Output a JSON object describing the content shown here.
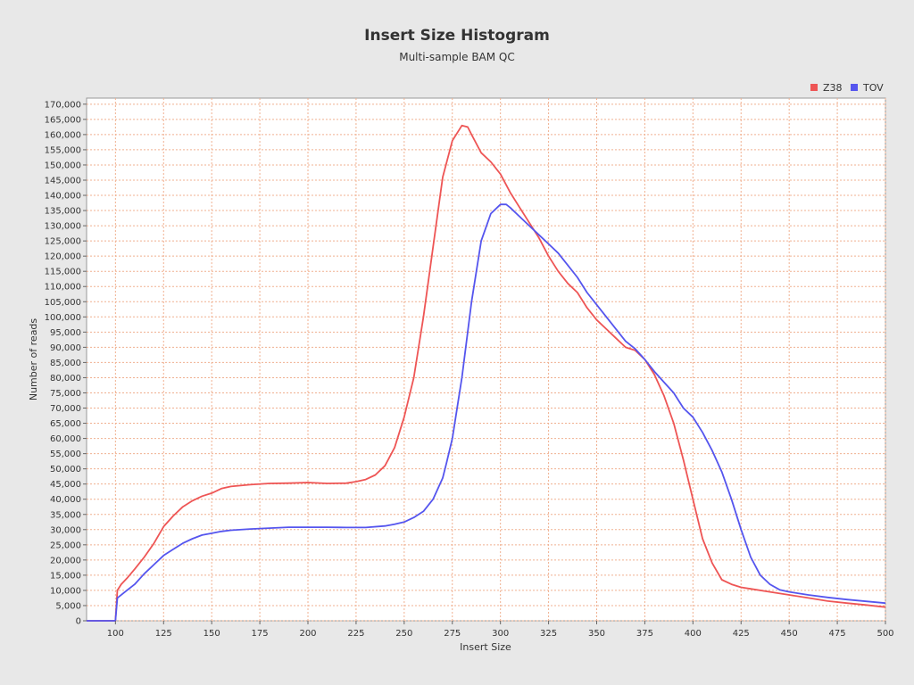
{
  "chart_data": {
    "type": "line",
    "title": "Insert Size Histogram",
    "subtitle": "Multi-sample BAM QC",
    "xlabel": "Insert Size",
    "ylabel": "Number of reads",
    "xlim": [
      85,
      500
    ],
    "ylim": [
      0,
      172000
    ],
    "xticks": [
      100,
      125,
      150,
      175,
      200,
      225,
      250,
      275,
      300,
      325,
      350,
      375,
      400,
      425,
      450,
      475,
      500
    ],
    "xtick_labels": [
      "100",
      "125",
      "150",
      "175",
      "200",
      "225",
      "250",
      "275",
      "300",
      "325",
      "350",
      "375",
      "400",
      "425",
      "450",
      "475",
      "500"
    ],
    "yticks": [
      0,
      5000,
      10000,
      15000,
      20000,
      25000,
      30000,
      35000,
      40000,
      45000,
      50000,
      55000,
      60000,
      65000,
      70000,
      75000,
      80000,
      85000,
      90000,
      95000,
      100000,
      105000,
      110000,
      115000,
      120000,
      125000,
      130000,
      135000,
      140000,
      145000,
      150000,
      155000,
      160000,
      165000,
      170000
    ],
    "ytick_labels": [
      "0",
      "5,000",
      "10,000",
      "15,000",
      "20,000",
      "25,000",
      "30,000",
      "35,000",
      "40,000",
      "45,000",
      "50,000",
      "55,000",
      "60,000",
      "65,000",
      "70,000",
      "75,000",
      "80,000",
      "85,000",
      "90,000",
      "95,000",
      "100,000",
      "105,000",
      "110,000",
      "115,000",
      "120,000",
      "125,000",
      "130,000",
      "135,000",
      "140,000",
      "145,000",
      "150,000",
      "155,000",
      "160,000",
      "165,000",
      "170,000"
    ],
    "grid": true,
    "legend_position": "top-right",
    "series": [
      {
        "name": "Z38",
        "color": "#ee5555",
        "points": [
          [
            85,
            0
          ],
          [
            100,
            0
          ],
          [
            101,
            10000
          ],
          [
            103,
            12000
          ],
          [
            106,
            14000
          ],
          [
            110,
            17000
          ],
          [
            115,
            21000
          ],
          [
            120,
            25500
          ],
          [
            125,
            31000
          ],
          [
            130,
            34500
          ],
          [
            135,
            37500
          ],
          [
            140,
            39500
          ],
          [
            145,
            41000
          ],
          [
            150,
            42000
          ],
          [
            155,
            43500
          ],
          [
            160,
            44200
          ],
          [
            170,
            44800
          ],
          [
            180,
            45200
          ],
          [
            190,
            45300
          ],
          [
            200,
            45500
          ],
          [
            210,
            45200
          ],
          [
            220,
            45300
          ],
          [
            225,
            45800
          ],
          [
            230,
            46500
          ],
          [
            235,
            48000
          ],
          [
            240,
            51000
          ],
          [
            245,
            57000
          ],
          [
            250,
            67000
          ],
          [
            255,
            80000
          ],
          [
            260,
            100000
          ],
          [
            265,
            123000
          ],
          [
            270,
            146000
          ],
          [
            275,
            158000
          ],
          [
            280,
            163000
          ],
          [
            283,
            162500
          ],
          [
            285,
            160000
          ],
          [
            290,
            154000
          ],
          [
            295,
            151000
          ],
          [
            300,
            147000
          ],
          [
            305,
            141000
          ],
          [
            310,
            136000
          ],
          [
            315,
            131000
          ],
          [
            320,
            126000
          ],
          [
            325,
            120000
          ],
          [
            330,
            115000
          ],
          [
            335,
            111000
          ],
          [
            340,
            108000
          ],
          [
            345,
            103000
          ],
          [
            350,
            99000
          ],
          [
            355,
            96000
          ],
          [
            360,
            93000
          ],
          [
            365,
            90000
          ],
          [
            370,
            89000
          ],
          [
            375,
            86000
          ],
          [
            380,
            81000
          ],
          [
            385,
            74000
          ],
          [
            390,
            65000
          ],
          [
            395,
            53000
          ],
          [
            400,
            40000
          ],
          [
            405,
            27000
          ],
          [
            410,
            19000
          ],
          [
            415,
            13500
          ],
          [
            420,
            12000
          ],
          [
            425,
            11000
          ],
          [
            430,
            10500
          ],
          [
            440,
            9500
          ],
          [
            450,
            8500
          ],
          [
            460,
            7500
          ],
          [
            470,
            6500
          ],
          [
            480,
            5800
          ],
          [
            490,
            5200
          ],
          [
            500,
            4500
          ]
        ]
      },
      {
        "name": "TOV",
        "color": "#5555ee",
        "points": [
          [
            85,
            0
          ],
          [
            100,
            0
          ],
          [
            101,
            7500
          ],
          [
            105,
            9500
          ],
          [
            110,
            12000
          ],
          [
            115,
            15500
          ],
          [
            120,
            18500
          ],
          [
            125,
            21500
          ],
          [
            130,
            23500
          ],
          [
            135,
            25500
          ],
          [
            140,
            27000
          ],
          [
            145,
            28200
          ],
          [
            150,
            28800
          ],
          [
            155,
            29400
          ],
          [
            160,
            29800
          ],
          [
            170,
            30200
          ],
          [
            180,
            30500
          ],
          [
            190,
            30800
          ],
          [
            200,
            30800
          ],
          [
            210,
            30800
          ],
          [
            220,
            30700
          ],
          [
            230,
            30700
          ],
          [
            240,
            31200
          ],
          [
            245,
            31800
          ],
          [
            250,
            32500
          ],
          [
            255,
            34000
          ],
          [
            260,
            36000
          ],
          [
            265,
            40000
          ],
          [
            270,
            47000
          ],
          [
            272,
            52000
          ],
          [
            275,
            60000
          ],
          [
            278,
            72000
          ],
          [
            280,
            80000
          ],
          [
            285,
            105000
          ],
          [
            290,
            125000
          ],
          [
            295,
            134000
          ],
          [
            300,
            137000
          ],
          [
            303,
            137000
          ],
          [
            305,
            136000
          ],
          [
            310,
            133000
          ],
          [
            315,
            130000
          ],
          [
            320,
            127000
          ],
          [
            325,
            124000
          ],
          [
            330,
            121000
          ],
          [
            335,
            117000
          ],
          [
            340,
            113000
          ],
          [
            345,
            108000
          ],
          [
            350,
            104000
          ],
          [
            355,
            100000
          ],
          [
            360,
            96000
          ],
          [
            365,
            92000
          ],
          [
            370,
            89500
          ],
          [
            375,
            86000
          ],
          [
            380,
            82000
          ],
          [
            385,
            78500
          ],
          [
            390,
            75000
          ],
          [
            395,
            70000
          ],
          [
            400,
            67000
          ],
          [
            405,
            62000
          ],
          [
            410,
            56000
          ],
          [
            415,
            49000
          ],
          [
            420,
            40000
          ],
          [
            425,
            30000
          ],
          [
            430,
            21000
          ],
          [
            435,
            15000
          ],
          [
            440,
            12000
          ],
          [
            445,
            10200
          ],
          [
            450,
            9500
          ],
          [
            460,
            8500
          ],
          [
            470,
            7700
          ],
          [
            480,
            7000
          ],
          [
            490,
            6400
          ],
          [
            500,
            5800
          ]
        ]
      }
    ]
  }
}
